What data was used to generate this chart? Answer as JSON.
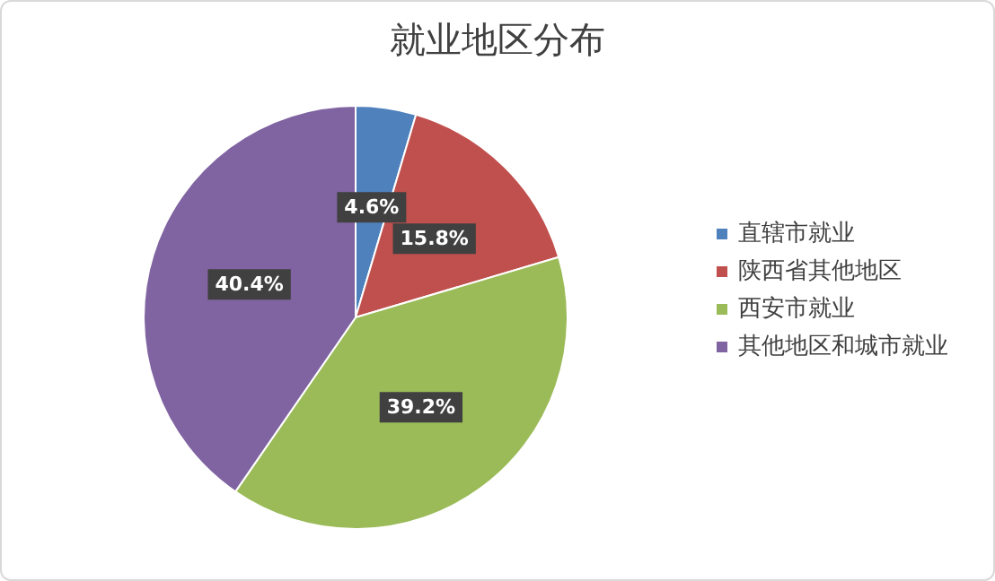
{
  "chart_data": {
    "type": "pie",
    "title": "就业地区分布",
    "categories": [
      "直辖市就业",
      "陕西省其他地区",
      "西安市就业",
      "其他地区和城市就业"
    ],
    "values": [
      4.6,
      15.8,
      39.2,
      40.4
    ],
    "colors": [
      "#4f81bd",
      "#c0504d",
      "#9bbb59",
      "#8064a2"
    ],
    "value_labels": [
      "4.6%",
      "15.8%",
      "39.2%",
      "40.4%"
    ],
    "legend": "right"
  }
}
